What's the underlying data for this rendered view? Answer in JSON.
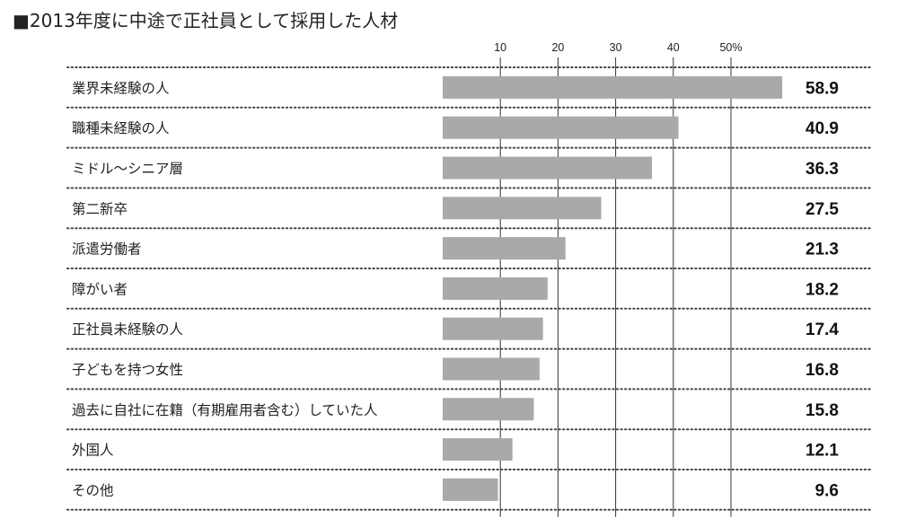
{
  "chart_data": {
    "type": "bar",
    "orientation": "horizontal",
    "title": "■2013年度に中途で正社員として採用した人材",
    "tick_labels": [
      "10",
      "20",
      "30",
      "40",
      "50%"
    ],
    "ticks": [
      10,
      20,
      30,
      40,
      50
    ],
    "xlim": [
      0,
      60
    ],
    "categories": [
      "業界未経験の人",
      "職種未経験の人",
      "ミドル～シニア層",
      "第二新卒",
      "派遣労働者",
      "障がい者",
      "正社員未経験の人",
      "子どもを持つ女性",
      "過去に自社に在籍（有期雇用者含む）していた人",
      "外国人",
      "その他"
    ],
    "values": [
      58.9,
      40.9,
      36.3,
      27.5,
      21.3,
      18.2,
      17.4,
      16.8,
      15.8,
      12.1,
      9.6
    ],
    "value_labels": [
      "58.9",
      "40.9",
      "36.3",
      "27.5",
      "21.3",
      "18.2",
      "17.4",
      "16.8",
      "15.8",
      "12.1",
      "9.6"
    ],
    "bar_color": "#a9a9a9",
    "gridlines": true,
    "legend": "none"
  }
}
